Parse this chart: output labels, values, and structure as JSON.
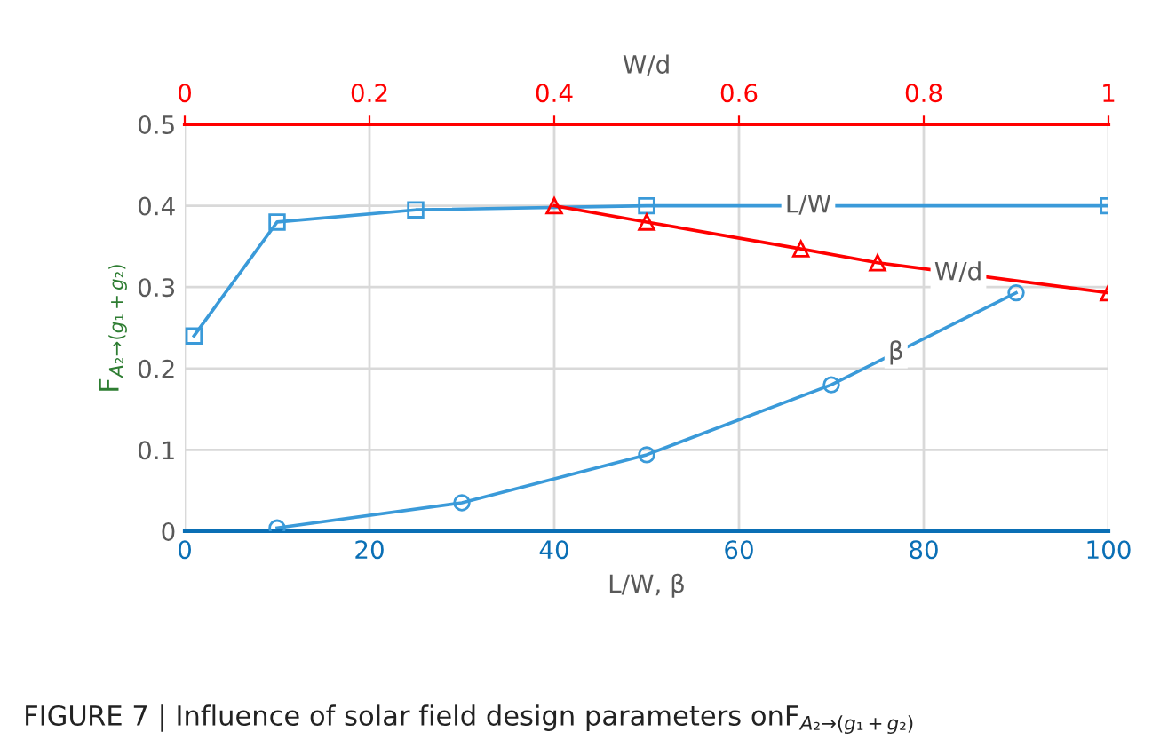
{
  "chart_data": {
    "type": "line",
    "xlabel": "L/W, β",
    "x2label": "W/d",
    "ylabel": "F$_{A₂→(g₁+g₂)}$",
    "xlim": [
      0,
      100
    ],
    "xticks": [
      0,
      20,
      40,
      60,
      80,
      100
    ],
    "x2lim": [
      0,
      1
    ],
    "x2ticks": [
      0,
      0.2,
      0.4,
      0.6,
      0.8,
      1
    ],
    "ylim": [
      0,
      0.5
    ],
    "yticks": [
      0,
      0.1,
      0.2,
      0.3,
      0.4,
      0.5
    ],
    "grid": true,
    "legend": false,
    "line_style": "solid",
    "series": [
      {
        "name": "L/W",
        "color": "#3a9ad9",
        "marker": "square",
        "x": [
          1,
          10,
          25,
          50,
          100
        ],
        "values": [
          0.24,
          0.38,
          0.395,
          0.4,
          0.4
        ]
      },
      {
        "name": "W/d",
        "color": "#ff0000",
        "marker": "triangle",
        "axis": "x2",
        "x": [
          0.4,
          0.5,
          0.667,
          0.75,
          1
        ],
        "values": [
          0.4,
          0.38,
          0.347,
          0.33,
          0.293
        ]
      },
      {
        "name": "β",
        "color": "#3a9ad9",
        "marker": "circle",
        "x": [
          10,
          30,
          50,
          70,
          90
        ],
        "values": [
          0.004,
          0.035,
          0.094,
          0.18,
          0.293
        ]
      }
    ],
    "annotations": [
      "FIGURE 7 | Influence of solar field design parameters onF$_{A₂→(g₁+g₂)}$"
    ]
  }
}
